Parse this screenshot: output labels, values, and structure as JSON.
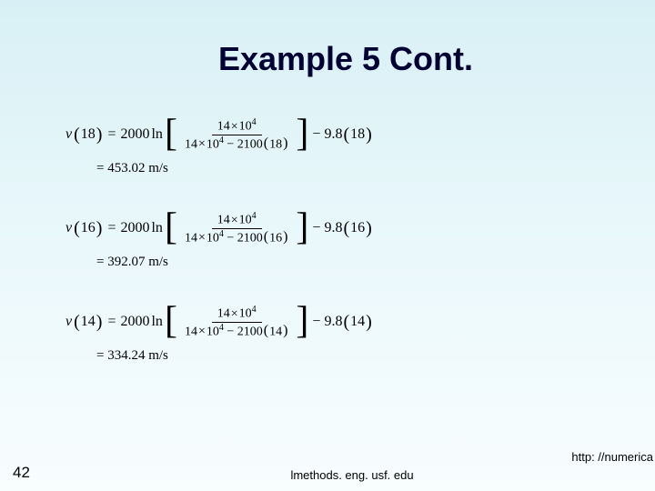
{
  "title": "Example 5 Cont.",
  "equations": {
    "blocks": [
      {
        "var": "v",
        "arg": "18",
        "coef": "2000",
        "num_top_a": "14",
        "num_top_exp": "4",
        "denom_a": "14",
        "denom_exp": "4",
        "denom_b": "2100",
        "denom_c": "18",
        "tail_a": "9.8",
        "tail_b": "18",
        "result": "= 453.02 m/s"
      },
      {
        "var": "v",
        "arg": "16",
        "coef": "2000",
        "num_top_a": "14",
        "num_top_exp": "4",
        "denom_a": "14",
        "denom_exp": "4",
        "denom_b": "2100",
        "denom_c": "16",
        "tail_a": "9.8",
        "tail_b": "16",
        "result": "= 392.07 m/s"
      },
      {
        "var": "v",
        "arg": "14",
        "coef": "2000",
        "num_top_a": "14",
        "num_top_exp": "4",
        "denom_a": "14",
        "denom_exp": "4",
        "denom_b": "2100",
        "denom_c": "14",
        "tail_a": "9.8",
        "tail_b": "14",
        "result": "= 334.24 m/s"
      }
    ],
    "ln_label": "ln",
    "ten": "10",
    "eq_sign": "="
  },
  "footer": {
    "page": "42",
    "center": "lmethods. eng. usf. edu",
    "right": "http: //numerica"
  },
  "style": {
    "title_color": "#000033",
    "bg_top": "#d8f0f5",
    "bg_bottom": "#f8fdfe"
  }
}
